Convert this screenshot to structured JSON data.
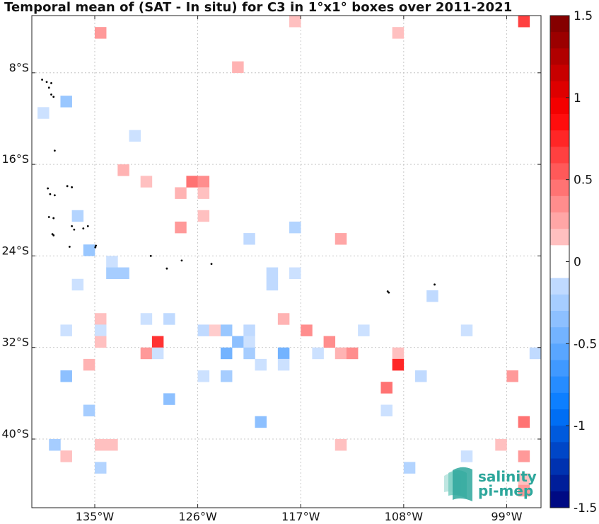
{
  "chart_data": {
    "type": "heatmap",
    "title": "Temporal mean of (SAT - In situ) for C3 in 1°x1° boxes over 2011-2021",
    "x_axis": {
      "unit": "lon",
      "range": [
        -140.5,
        -96.0
      ],
      "ticks": [
        -135,
        -126,
        -117,
        -108,
        -99
      ],
      "tick_labels": [
        "135°W",
        "126°W",
        "117°W",
        "108°W",
        "99°W"
      ]
    },
    "y_axis": {
      "unit": "lat",
      "range": [
        -46.0,
        -3.0
      ],
      "ticks": [
        -8,
        -16,
        -24,
        -32,
        -40
      ],
      "tick_labels": [
        "8°S",
        "16°S",
        "24°S",
        "32°S",
        "40°S"
      ]
    },
    "grid": true,
    "colorbar": {
      "range": [
        -1.5,
        1.5
      ],
      "steps": 30,
      "placement": "right",
      "tick_values": [
        1.5,
        1,
        0.5,
        0,
        -0.5,
        -1,
        -1.5
      ],
      "tick_labels": [
        "1.5",
        "1",
        "0.5",
        "0",
        "-0.5",
        "-1",
        "-1.5"
      ]
    },
    "cells": [
      {
        "lon": -134.5,
        "lat": -4.5,
        "value": 0.3
      },
      {
        "lon": -117.5,
        "lat": -3.5,
        "value": 0.15
      },
      {
        "lon": -108.5,
        "lat": -4.5,
        "value": 0.15
      },
      {
        "lon": -97.5,
        "lat": -3.5,
        "value": 0.65
      },
      {
        "lon": -122.5,
        "lat": -7.5,
        "value": 0.2
      },
      {
        "lon": -137.5,
        "lat": -10.5,
        "value": -0.3
      },
      {
        "lon": -139.5,
        "lat": -11.5,
        "value": -0.1
      },
      {
        "lon": -131.5,
        "lat": -13.5,
        "value": -0.1
      },
      {
        "lon": -132.5,
        "lat": -16.5,
        "value": 0.2
      },
      {
        "lon": -130.5,
        "lat": -17.5,
        "value": 0.15
      },
      {
        "lon": -126.5,
        "lat": -17.5,
        "value": 0.45
      },
      {
        "lon": -125.5,
        "lat": -17.5,
        "value": 0.35
      },
      {
        "lon": -127.5,
        "lat": -18.5,
        "value": 0.2
      },
      {
        "lon": -125.5,
        "lat": -18.5,
        "value": 0.15
      },
      {
        "lon": -125.5,
        "lat": -20.5,
        "value": 0.15
      },
      {
        "lon": -136.5,
        "lat": -20.5,
        "value": -0.2
      },
      {
        "lon": -127.5,
        "lat": -21.5,
        "value": 0.3
      },
      {
        "lon": -117.5,
        "lat": -21.5,
        "value": -0.2
      },
      {
        "lon": -121.5,
        "lat": -22.5,
        "value": -0.15
      },
      {
        "lon": -113.5,
        "lat": -22.5,
        "value": 0.25
      },
      {
        "lon": -135.5,
        "lat": -23.5,
        "value": -0.3
      },
      {
        "lon": -133.5,
        "lat": -24.5,
        "value": -0.1
      },
      {
        "lon": -133.5,
        "lat": -25.5,
        "value": -0.25
      },
      {
        "lon": -132.5,
        "lat": -25.5,
        "value": -0.25
      },
      {
        "lon": -119.5,
        "lat": -25.5,
        "value": -0.15
      },
      {
        "lon": -119.5,
        "lat": -26.5,
        "value": -0.15
      },
      {
        "lon": -117.5,
        "lat": -25.5,
        "value": -0.1
      },
      {
        "lon": -136.5,
        "lat": -26.5,
        "value": -0.1
      },
      {
        "lon": -105.5,
        "lat": -27.5,
        "value": -0.15
      },
      {
        "lon": -134.5,
        "lat": -29.5,
        "value": 0.15
      },
      {
        "lon": -130.5,
        "lat": -29.5,
        "value": -0.1
      },
      {
        "lon": -128.5,
        "lat": -29.5,
        "value": -0.15
      },
      {
        "lon": -118.5,
        "lat": -29.5,
        "value": 0.2
      },
      {
        "lon": -137.5,
        "lat": -30.5,
        "value": -0.1
      },
      {
        "lon": -134.5,
        "lat": -30.5,
        "value": -0.1
      },
      {
        "lon": -125.5,
        "lat": -30.5,
        "value": -0.15
      },
      {
        "lon": -124.5,
        "lat": -30.5,
        "value": 0.1
      },
      {
        "lon": -123.5,
        "lat": -30.5,
        "value": -0.3
      },
      {
        "lon": -121.5,
        "lat": -30.5,
        "value": -0.15
      },
      {
        "lon": -116.5,
        "lat": -30.5,
        "value": 0.35
      },
      {
        "lon": -111.5,
        "lat": -30.5,
        "value": -0.1
      },
      {
        "lon": -102.5,
        "lat": -30.5,
        "value": -0.1
      },
      {
        "lon": -134.5,
        "lat": -31.5,
        "value": 0.15
      },
      {
        "lon": -129.5,
        "lat": -31.5,
        "value": 0.7
      },
      {
        "lon": -122.5,
        "lat": -31.5,
        "value": -0.35
      },
      {
        "lon": -121.5,
        "lat": -31.5,
        "value": -0.1
      },
      {
        "lon": -114.5,
        "lat": -31.5,
        "value": 0.35
      },
      {
        "lon": -130.5,
        "lat": -32.5,
        "value": 0.3
      },
      {
        "lon": -129.5,
        "lat": -32.5,
        "value": -0.1
      },
      {
        "lon": -123.5,
        "lat": -32.5,
        "value": -0.45
      },
      {
        "lon": -121.5,
        "lat": -32.5,
        "value": -0.25
      },
      {
        "lon": -118.5,
        "lat": -32.5,
        "value": -0.45
      },
      {
        "lon": -115.5,
        "lat": -32.5,
        "value": -0.1
      },
      {
        "lon": -113.5,
        "lat": -32.5,
        "value": 0.2
      },
      {
        "lon": -112.5,
        "lat": -32.5,
        "value": 0.35
      },
      {
        "lon": -108.5,
        "lat": -32.5,
        "value": 0.15
      },
      {
        "lon": -96.5,
        "lat": -32.5,
        "value": -0.15
      },
      {
        "lon": -135.5,
        "lat": -33.5,
        "value": 0.2
      },
      {
        "lon": -120.5,
        "lat": -33.5,
        "value": -0.1
      },
      {
        "lon": -118.5,
        "lat": -33.5,
        "value": -0.1
      },
      {
        "lon": -108.5,
        "lat": -33.5,
        "value": 0.75
      },
      {
        "lon": -137.5,
        "lat": -34.5,
        "value": -0.35
      },
      {
        "lon": -125.5,
        "lat": -34.5,
        "value": -0.1
      },
      {
        "lon": -123.5,
        "lat": -34.5,
        "value": -0.25
      },
      {
        "lon": -106.5,
        "lat": -34.5,
        "value": -0.15
      },
      {
        "lon": -98.5,
        "lat": -34.5,
        "value": 0.3
      },
      {
        "lon": -109.5,
        "lat": -35.5,
        "value": 0.45
      },
      {
        "lon": -128.5,
        "lat": -36.5,
        "value": -0.35
      },
      {
        "lon": -135.5,
        "lat": -37.5,
        "value": -0.25
      },
      {
        "lon": -109.5,
        "lat": -37.5,
        "value": -0.1
      },
      {
        "lon": -120.5,
        "lat": -38.5,
        "value": -0.35
      },
      {
        "lon": -97.5,
        "lat": -38.5,
        "value": 0.45
      },
      {
        "lon": -138.5,
        "lat": -40.5,
        "value": -0.25
      },
      {
        "lon": -134.5,
        "lat": -40.5,
        "value": 0.15
      },
      {
        "lon": -133.5,
        "lat": -40.5,
        "value": 0.15
      },
      {
        "lon": -113.5,
        "lat": -40.5,
        "value": 0.15
      },
      {
        "lon": -99.5,
        "lat": -40.5,
        "value": 0.15
      },
      {
        "lon": -137.5,
        "lat": -41.5,
        "value": 0.15
      },
      {
        "lon": -102.5,
        "lat": -41.5,
        "value": -0.1
      },
      {
        "lon": -97.5,
        "lat": -41.5,
        "value": 0.3
      },
      {
        "lon": -134.5,
        "lat": -42.5,
        "value": -0.2
      },
      {
        "lon": -107.5,
        "lat": -42.5,
        "value": -0.2
      },
      {
        "lon": -97.5,
        "lat": -43.5,
        "value": 0.15
      },
      {
        "lon": -97.5,
        "lat": -44.5,
        "value": 0.3
      }
    ],
    "land": [
      [
        -139.6,
        -8.6
      ],
      [
        -139.2,
        -8.8
      ],
      [
        -138.8,
        -8.9
      ],
      [
        -139.0,
        -9.3
      ],
      [
        -138.8,
        -9.9
      ],
      [
        -138.6,
        -10.1
      ],
      [
        -138.5,
        -14.8
      ],
      [
        -139.1,
        -18.1
      ],
      [
        -137.4,
        -17.9
      ],
      [
        -137.0,
        -18.0
      ],
      [
        -138.9,
        -18.6
      ],
      [
        -138.5,
        -18.7
      ],
      [
        -139.0,
        -20.6
      ],
      [
        -138.6,
        -20.7
      ],
      [
        -137.0,
        -21.4
      ],
      [
        -136.8,
        -21.7
      ],
      [
        -136.0,
        -21.6
      ],
      [
        -135.6,
        -21.4
      ],
      [
        -138.7,
        -22.1
      ],
      [
        -138.6,
        -22.2
      ],
      [
        -137.2,
        -23.2
      ],
      [
        -134.9,
        -23.1
      ],
      [
        -134.95,
        -23.25
      ],
      [
        -130.1,
        -24.0
      ],
      [
        -127.4,
        -24.4
      ],
      [
        -124.8,
        -24.7
      ],
      [
        -128.7,
        -25.1
      ],
      [
        -109.4,
        -27.1
      ],
      [
        -109.3,
        -27.2
      ],
      [
        -105.3,
        -26.5
      ]
    ]
  },
  "logo": {
    "line1": "salinity",
    "line2": "pi-mep"
  }
}
